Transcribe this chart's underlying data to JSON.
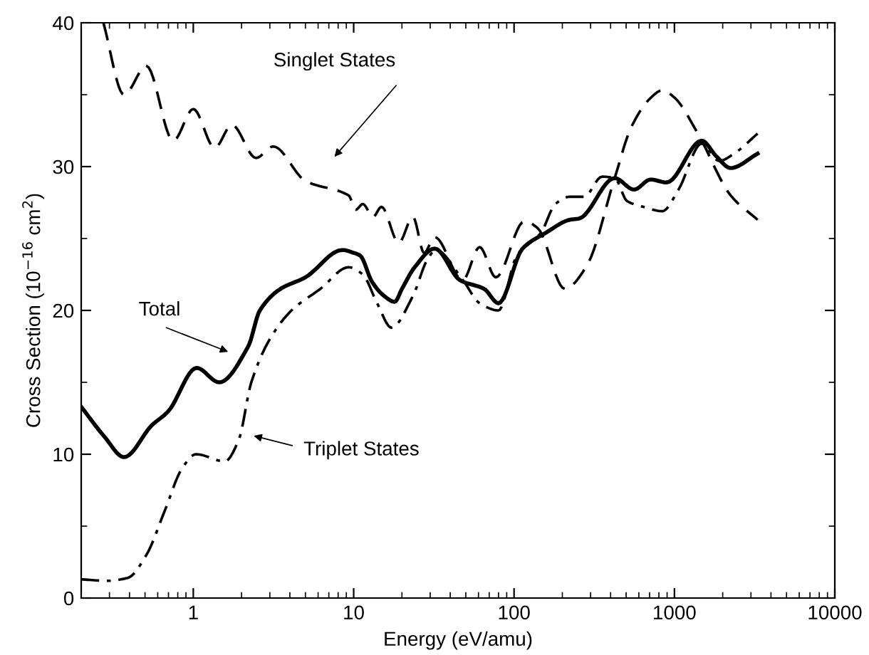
{
  "chart_data": {
    "type": "line",
    "xlabel": "Energy (eV/amu)",
    "ylabel": "Cross Section (10$^{−16}$ cm$^{2}$)",
    "log": "x",
    "xlim": [
      0.2,
      10000
    ],
    "xticks": [
      {
        "value": 1,
        "label": "1"
      },
      {
        "value": 10,
        "label": "10"
      },
      {
        "value": 100,
        "label": "100"
      },
      {
        "value": 1000,
        "label": "1000"
      },
      {
        "value": 10000,
        "label": "10000"
      }
    ],
    "ylim": [
      0,
      40
    ],
    "yticks": [
      0,
      10,
      20,
      30,
      40
    ],
    "grid": false,
    "marker": "none",
    "series": [
      {
        "color": "#000000",
        "line_style": "solid",
        "x": [
          0.2,
          0.28,
          0.37,
          0.55,
          0.7,
          1.05,
          1.45,
          2.2,
          2.6,
          3.5,
          5,
          8.5,
          10,
          11,
          13,
          15.5,
          18,
          20,
          24,
          32,
          46,
          65,
          80,
          113,
          158,
          222,
          256,
          424,
          560,
          710,
          895,
          1480,
          1830,
          2240,
          3300
        ],
        "values": [
          13.3,
          11.2,
          9.8,
          12,
          13,
          16,
          15,
          17.5,
          20,
          21.5,
          22.3,
          24.2,
          24,
          23.8,
          22,
          21,
          20.6,
          21.5,
          23,
          24.3,
          22.1,
          21.5,
          20.5,
          24.3,
          25.4,
          26.3,
          26.4,
          29.2,
          28.4,
          29.1,
          28.9,
          31.8,
          30.7,
          29.9,
          30.9
        ]
      },
      {
        "color": "#000000",
        "line_style": "dashed",
        "x": [
          0.275,
          0.37,
          0.51,
          0.75,
          1.0,
          1.36,
          1.74,
          2.46,
          3.15,
          5.0,
          9.3,
          10.3,
          11.4,
          13.2,
          14.9,
          19.1,
          23.4,
          27.5,
          32,
          47.8,
          61,
          77,
          116,
          141,
          207,
          284,
          424,
          536,
          700,
          840,
          1000,
          1400,
          2240,
          3300
        ],
        "values": [
          40,
          35,
          37,
          31.8,
          34,
          31.3,
          32.9,
          30.6,
          31.4,
          29,
          28,
          27,
          27.4,
          26.5,
          27.2,
          24.7,
          26.5,
          24,
          25.1,
          22.1,
          24.4,
          22.3,
          26.2,
          25.7,
          21.5,
          23.1,
          29.2,
          32.7,
          34.7,
          35.3,
          34.8,
          32.3,
          28.0,
          26.3
        ]
      },
      {
        "color": "#000000",
        "line_style": "dashdot",
        "x": [
          0.2,
          0.29,
          0.39,
          0.51,
          0.66,
          0.85,
          1.04,
          1.57,
          1.92,
          2.3,
          3.0,
          4.1,
          6.2,
          9.3,
          11.4,
          14,
          17.2,
          23.4,
          28.7,
          32.5,
          48,
          61,
          80,
          104,
          147,
          181,
          222,
          273,
          354,
          424,
          507,
          640,
          840,
          1060,
          1480,
          1900,
          2420,
          3300
        ],
        "values": [
          1.3,
          1.2,
          1.4,
          3,
          6,
          9,
          10,
          9.5,
          11,
          15,
          18,
          20,
          21.5,
          23,
          22.5,
          20.5,
          18.8,
          21,
          23.5,
          24.2,
          22.1,
          20.5,
          20.0,
          23.8,
          25.4,
          27.4,
          27.9,
          27.9,
          29.3,
          29.2,
          27.6,
          27.2,
          26.9,
          28.4,
          31.6,
          30.4,
          31.0,
          32.3
        ]
      }
    ],
    "annotations": [
      "Singlet States",
      "Total",
      "Triplet States"
    ]
  }
}
